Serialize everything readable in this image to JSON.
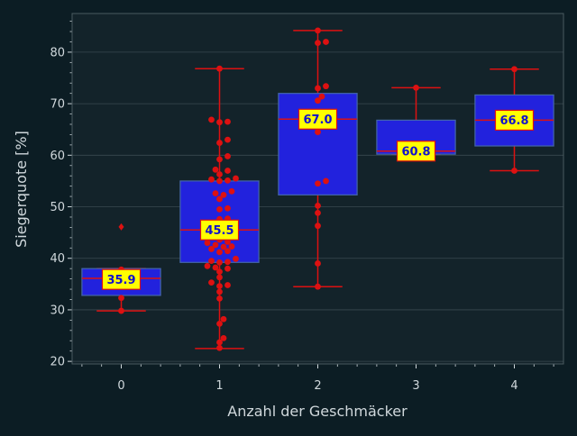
{
  "chart_data": {
    "type": "box",
    "xlabel": "Anzahl der Geschmäcker",
    "ylabel": "Siegerquote [%]",
    "categories": [
      "0",
      "1",
      "2",
      "3",
      "4"
    ],
    "ylim": [
      19.5,
      87.5
    ],
    "y_ticks": [
      20,
      30,
      40,
      50,
      60,
      70,
      80
    ],
    "grid": true,
    "colors": {
      "background": "#0c1d24",
      "plot_bg": "#13232a",
      "box_fill": "#2222dd",
      "box_edge": "#4466aa",
      "whisker": "#dd1111",
      "points": "#dd1111",
      "median": "#dd1111",
      "label_bg": "#ffff00",
      "label_edge": "#dd1111",
      "label_text": "#1111cc",
      "text": "#d0d8dc",
      "grid": "#3a4a50"
    },
    "boxes": [
      {
        "category": "0",
        "q1": 32.8,
        "median": 36.1,
        "q3": 38.0,
        "whisker_low": 29.8,
        "whisker_high": 38.0,
        "mean": 35.9,
        "mean_label": "35.9",
        "outliers": [
          46.1
        ]
      },
      {
        "category": "1",
        "q1": 39.2,
        "median": 45.5,
        "q3": 55.0,
        "whisker_low": 22.5,
        "whisker_high": 76.8,
        "mean": 45.5,
        "mean_label": "45.5",
        "outliers": []
      },
      {
        "category": "2",
        "q1": 52.3,
        "median": 67.0,
        "q3": 72.0,
        "whisker_low": 34.5,
        "whisker_high": 84.2,
        "mean": 67.0,
        "mean_label": "67.0",
        "outliers": []
      },
      {
        "category": "3",
        "q1": 60.2,
        "median": 60.8,
        "q3": 66.8,
        "whisker_low": 60.2,
        "whisker_high": 73.1,
        "mean": 60.8,
        "mean_label": "60.8",
        "outliers": []
      },
      {
        "category": "4",
        "q1": 61.8,
        "median": 66.8,
        "q3": 71.7,
        "whisker_low": 57.0,
        "whisker_high": 76.7,
        "mean": 66.8,
        "mean_label": "66.8",
        "outliers": []
      }
    ],
    "points": [
      {
        "category": "0",
        "values": [
          32.3,
          29.8,
          36.5,
          37.8
        ]
      },
      {
        "category": "1",
        "values": [
          76.8,
          66.5,
          66.9,
          66.4,
          63.0,
          62.4,
          59.8,
          59.2,
          57.2,
          57.0,
          56.3,
          55.5,
          55.3,
          55.1,
          55.0,
          53.0,
          52.6,
          52.3,
          51.5,
          49.7,
          49.5,
          47.7,
          47.6,
          46.3,
          45.3,
          44.6,
          44.4,
          44.1,
          43.6,
          43.2,
          43.0,
          42.6,
          42.3,
          42.2,
          41.8,
          41.4,
          41.2,
          39.9,
          39.5,
          39.3,
          39.2,
          38.5,
          38.2,
          38.0,
          37.4,
          36.3,
          35.3,
          34.8,
          34.6,
          33.5,
          32.2,
          28.2,
          27.3,
          24.5,
          23.7,
          22.6
        ]
      },
      {
        "category": "2",
        "values": [
          84.2,
          82.0,
          81.8,
          73.4,
          73.0,
          71.4,
          70.6,
          64.5,
          55.0,
          54.5,
          50.2,
          48.8,
          46.3,
          39.0,
          34.5
        ]
      },
      {
        "category": "3",
        "values": [
          73.1
        ]
      },
      {
        "category": "4",
        "values": [
          76.7,
          57.0
        ]
      }
    ]
  }
}
